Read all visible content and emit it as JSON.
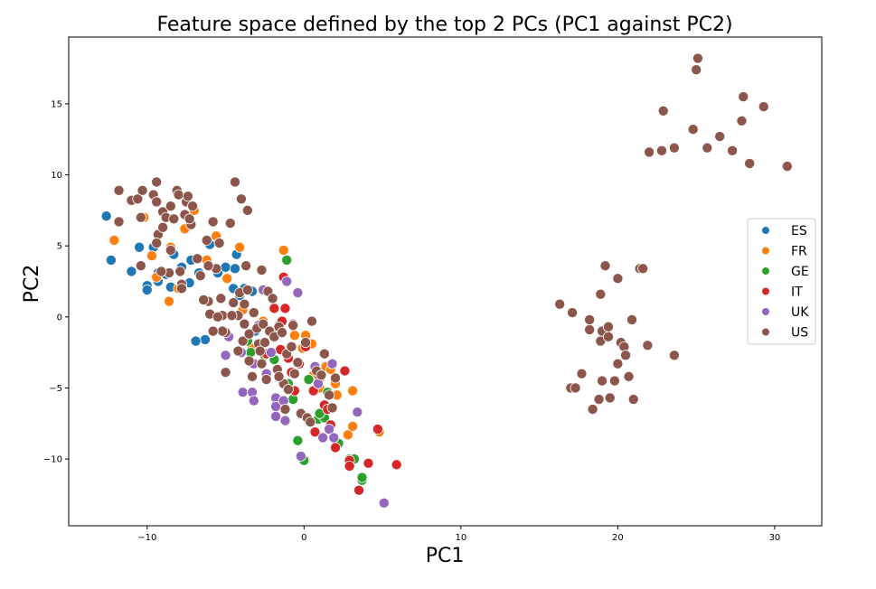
{
  "chart_data": {
    "type": "scatter",
    "title": "Feature space defined by the top 2 PCs (PC1 against PC2)",
    "xlabel": "PC1",
    "ylabel": "PC2",
    "xlim": [
      -15,
      33
    ],
    "ylim": [
      -14.7,
      19.7
    ],
    "xticks": [
      -10,
      0,
      10,
      20,
      30
    ],
    "yticks": [
      -10,
      -5,
      0,
      5,
      10,
      15
    ],
    "grid": false,
    "legend_position": "right",
    "series": [
      {
        "name": "ES",
        "color": "#1f77b4",
        "points": [
          [
            -12.6,
            7.1
          ],
          [
            -12.3,
            4.0
          ],
          [
            -11.0,
            3.2
          ],
          [
            -10.5,
            4.9
          ],
          [
            -10.0,
            2.2
          ],
          [
            -9.6,
            4.9
          ],
          [
            -10.0,
            1.9
          ],
          [
            -9.3,
            3.1
          ],
          [
            -9.3,
            2.5
          ],
          [
            -8.8,
            3.0
          ],
          [
            -8.5,
            2.1
          ],
          [
            -8.3,
            4.4
          ],
          [
            -7.8,
            3.5
          ],
          [
            -7.3,
            2.4
          ],
          [
            -7.2,
            4.0
          ],
          [
            -6.7,
            3.1
          ],
          [
            -6.3,
            -1.6
          ],
          [
            -6.9,
            -1.7
          ],
          [
            -6.0,
            5.1
          ],
          [
            -5.5,
            3.1
          ],
          [
            -5.0,
            3.5
          ],
          [
            -4.3,
            4.4
          ],
          [
            -4.4,
            3.4
          ],
          [
            -4.5,
            2.0
          ],
          [
            -4.1,
            1.5
          ],
          [
            -3.8,
            2.0
          ],
          [
            -3.1,
            -1.0
          ],
          [
            -3.3,
            1.8
          ]
        ]
      },
      {
        "name": "FR",
        "color": "#ff7f0e",
        "points": [
          [
            -12.1,
            5.4
          ],
          [
            -10.2,
            7.0
          ],
          [
            -9.7,
            4.3
          ],
          [
            -9.4,
            2.8
          ],
          [
            -8.6,
            1.1
          ],
          [
            -8.5,
            4.9
          ],
          [
            -8.0,
            2.0
          ],
          [
            -7.6,
            6.2
          ],
          [
            -7.0,
            7.5
          ],
          [
            -6.2,
            4.0
          ],
          [
            -5.6,
            5.7
          ],
          [
            -4.9,
            2.7
          ],
          [
            -4.1,
            4.9
          ],
          [
            -3.9,
            0.5
          ],
          [
            -3.3,
            -2.2
          ],
          [
            -2.6,
            -0.3
          ],
          [
            -1.7,
            -0.8
          ],
          [
            -1.3,
            4.7
          ],
          [
            -0.6,
            -1.3
          ],
          [
            -0.1,
            -2.2
          ],
          [
            0.1,
            -1.3
          ],
          [
            0.5,
            -1.9
          ],
          [
            0.6,
            -4.1
          ],
          [
            1.0,
            -5.0
          ],
          [
            1.4,
            -3.5
          ],
          [
            1.7,
            -3.7
          ],
          [
            2.0,
            -4.7
          ],
          [
            2.1,
            -5.5
          ],
          [
            2.8,
            -8.3
          ],
          [
            3.1,
            -5.2
          ],
          [
            3.1,
            -7.7
          ],
          [
            4.8,
            -8.1
          ]
        ]
      },
      {
        "name": "GE",
        "color": "#2ca02c",
        "points": [
          [
            -3.6,
            -1.7
          ],
          [
            -3.4,
            -2.5
          ],
          [
            -2.5,
            -2.7
          ],
          [
            -1.9,
            -3.0
          ],
          [
            -1.6,
            -0.6
          ],
          [
            -1.1,
            4.0
          ],
          [
            -1.0,
            -4.7
          ],
          [
            -0.7,
            -5.8
          ],
          [
            -0.4,
            -8.7
          ],
          [
            0.0,
            -10.1
          ],
          [
            0.3,
            -4.4
          ],
          [
            0.9,
            -7.2
          ],
          [
            1.3,
            -7.1
          ],
          [
            1.5,
            -5.3
          ],
          [
            2.2,
            -8.9
          ],
          [
            2.9,
            -10.0
          ],
          [
            3.2,
            -10.0
          ],
          [
            3.7,
            -11.5
          ],
          [
            3.7,
            -11.3
          ],
          [
            1.0,
            -6.8
          ]
        ]
      },
      {
        "name": "IT",
        "color": "#d62728",
        "points": [
          [
            -1.9,
            0.6
          ],
          [
            -1.4,
            -0.3
          ],
          [
            -1.3,
            2.8
          ],
          [
            -1.2,
            0.6
          ],
          [
            -1.0,
            -2.9
          ],
          [
            -0.8,
            -3.9
          ],
          [
            -0.6,
            -5.2
          ],
          [
            -0.3,
            -3.3
          ],
          [
            0.1,
            -2.1
          ],
          [
            0.6,
            -5.2
          ],
          [
            0.7,
            -8.1
          ],
          [
            1.0,
            -4.3
          ],
          [
            1.3,
            -6.2
          ],
          [
            1.5,
            -6.5
          ],
          [
            1.7,
            -7.6
          ],
          [
            2.0,
            -9.2
          ],
          [
            2.6,
            -3.8
          ],
          [
            2.9,
            -10.1
          ],
          [
            2.9,
            -10.5
          ],
          [
            3.5,
            -12.2
          ],
          [
            4.1,
            -10.3
          ],
          [
            4.7,
            -7.9
          ],
          [
            5.9,
            -10.4
          ],
          [
            -2.4,
            -2.6
          ],
          [
            -1.5,
            -2.3
          ]
        ]
      },
      {
        "name": "UK",
        "color": "#9467bd",
        "points": [
          [
            -5.0,
            -2.7
          ],
          [
            -4.8,
            -1.4
          ],
          [
            -4.0,
            -2.5
          ],
          [
            -3.9,
            -5.3
          ],
          [
            -3.3,
            -5.3
          ],
          [
            -3.2,
            -3.3
          ],
          [
            -3.2,
            -5.9
          ],
          [
            -2.9,
            -0.6
          ],
          [
            -2.6,
            1.9
          ],
          [
            -2.1,
            -2.5
          ],
          [
            -1.8,
            -5.7
          ],
          [
            -1.8,
            -6.3
          ],
          [
            -1.8,
            -7.0
          ],
          [
            -1.3,
            -5.9
          ],
          [
            -1.2,
            -7.3
          ],
          [
            -1.1,
            2.5
          ],
          [
            -0.7,
            -0.5
          ],
          [
            -0.4,
            1.7
          ],
          [
            -0.2,
            -9.8
          ],
          [
            0.7,
            -3.5
          ],
          [
            0.9,
            -4.7
          ],
          [
            1.2,
            -8.5
          ],
          [
            1.6,
            -7.9
          ],
          [
            1.9,
            -8.5
          ],
          [
            3.4,
            -6.7
          ],
          [
            5.1,
            -13.1
          ],
          [
            1.8,
            -3.3
          ],
          [
            -2.4,
            -4.0
          ]
        ]
      },
      {
        "name": "US",
        "color": "#8c564b",
        "points": [
          [
            -11.8,
            8.9
          ],
          [
            -11.8,
            6.7
          ],
          [
            -11.0,
            8.2
          ],
          [
            -10.6,
            8.3
          ],
          [
            -10.3,
            8.9
          ],
          [
            -10.4,
            7.0
          ],
          [
            -10.4,
            3.6
          ],
          [
            -9.6,
            8.6
          ],
          [
            -9.4,
            9.5
          ],
          [
            -9.4,
            8.1
          ],
          [
            -9.3,
            5.8
          ],
          [
            -9.4,
            5.2
          ],
          [
            -9.0,
            7.4
          ],
          [
            -9.0,
            6.3
          ],
          [
            -8.8,
            7.0
          ],
          [
            -8.6,
            3.1
          ],
          [
            -8.5,
            7.8
          ],
          [
            -8.5,
            4.7
          ],
          [
            -8.3,
            6.9
          ],
          [
            -8.1,
            8.9
          ],
          [
            -8.0,
            8.6
          ],
          [
            -7.9,
            3.2
          ],
          [
            -7.8,
            2.3
          ],
          [
            -7.6,
            7.2
          ],
          [
            -7.5,
            8.1
          ],
          [
            -7.4,
            8.5
          ],
          [
            -7.2,
            6.5
          ],
          [
            -7.1,
            7.8
          ],
          [
            -6.8,
            4.1
          ],
          [
            -6.6,
            2.9
          ],
          [
            -6.2,
            5.4
          ],
          [
            -6.1,
            1.1
          ],
          [
            -6.0,
            0.2
          ],
          [
            -5.8,
            6.7
          ],
          [
            -5.6,
            3.4
          ],
          [
            -5.4,
            5.2
          ],
          [
            -5.3,
            1.3
          ],
          [
            -5.2,
            0.1
          ],
          [
            -5.0,
            -1.1
          ],
          [
            -5.0,
            -3.9
          ],
          [
            -4.7,
            6.6
          ],
          [
            -4.4,
            9.5
          ],
          [
            -4.2,
            0.1
          ],
          [
            -4.1,
            1.7
          ],
          [
            -4.0,
            8.3
          ],
          [
            -3.9,
            -1.7
          ],
          [
            -3.8,
            0.9
          ],
          [
            -3.8,
            -0.5
          ],
          [
            -3.7,
            3.6
          ],
          [
            -3.6,
            7.5
          ],
          [
            -3.6,
            1.9
          ],
          [
            -3.5,
            -1.2
          ],
          [
            -3.3,
            -4.2
          ],
          [
            -3.2,
            0.3
          ],
          [
            -3.0,
            -0.8
          ],
          [
            -2.9,
            -1.9
          ],
          [
            -2.7,
            3.3
          ],
          [
            -2.7,
            -3.3
          ],
          [
            -2.6,
            -0.5
          ],
          [
            -2.5,
            -1.8
          ],
          [
            -2.3,
            1.8
          ],
          [
            -2.2,
            -1.0
          ],
          [
            -2.0,
            1.3
          ],
          [
            -1.9,
            -1.4
          ],
          [
            -1.7,
            -3.7
          ],
          [
            -1.6,
            -0.7
          ],
          [
            -1.4,
            -1.1
          ],
          [
            -1.3,
            -4.7
          ],
          [
            -1.2,
            -6.5
          ],
          [
            -1.1,
            -2.6
          ],
          [
            -1.0,
            -5.1
          ],
          [
            -0.8,
            -2.1
          ],
          [
            -0.7,
            -0.6
          ],
          [
            -0.6,
            -4.0
          ],
          [
            -0.4,
            -3.2
          ],
          [
            -0.2,
            -6.8
          ],
          [
            0.1,
            -1.8
          ],
          [
            0.2,
            -7.1
          ],
          [
            0.4,
            -7.4
          ],
          [
            0.5,
            -0.3
          ],
          [
            0.8,
            -3.8
          ],
          [
            1.1,
            -4.1
          ],
          [
            1.3,
            -2.6
          ],
          [
            1.6,
            -5.5
          ],
          [
            1.8,
            -6.4
          ],
          [
            2.0,
            -4.3
          ],
          [
            -5.2,
            -1.0
          ],
          [
            -5.8,
            -1.0
          ],
          [
            -6.1,
            3.6
          ],
          [
            -7.3,
            6.9
          ],
          [
            -9.1,
            3.2
          ],
          [
            -7.8,
            2.0
          ],
          [
            -6.4,
            1.2
          ],
          [
            -4.6,
            0.1
          ],
          [
            -4.5,
            1.0
          ],
          [
            -4.2,
            -2.4
          ],
          [
            -3.5,
            -3.1
          ],
          [
            -2.8,
            -2.4
          ],
          [
            -2.4,
            -4.4
          ],
          [
            -1.6,
            -4.2
          ],
          [
            -5.5,
            0.0
          ],
          [
            16.3,
            0.9
          ],
          [
            17.0,
            -5.0
          ],
          [
            17.1,
            0.3
          ],
          [
            17.3,
            -5.0
          ],
          [
            17.7,
            -4.0
          ],
          [
            18.2,
            -0.2
          ],
          [
            18.2,
            -0.9
          ],
          [
            18.4,
            -6.5
          ],
          [
            18.8,
            -5.8
          ],
          [
            18.9,
            -1.7
          ],
          [
            18.9,
            1.6
          ],
          [
            19.0,
            -1.0
          ],
          [
            19.0,
            -4.5
          ],
          [
            19.2,
            3.6
          ],
          [
            19.4,
            -0.7
          ],
          [
            19.4,
            -1.4
          ],
          [
            19.5,
            -5.7
          ],
          [
            19.8,
            -4.5
          ],
          [
            20.0,
            2.7
          ],
          [
            20.0,
            -3.3
          ],
          [
            20.2,
            -1.8
          ],
          [
            20.4,
            -2.1
          ],
          [
            20.5,
            -2.7
          ],
          [
            20.7,
            -4.2
          ],
          [
            20.9,
            -0.2
          ],
          [
            21.0,
            -5.8
          ],
          [
            21.4,
            3.4
          ],
          [
            21.6,
            3.4
          ],
          [
            21.9,
            -2.0
          ],
          [
            23.6,
            -2.7
          ],
          [
            22.0,
            11.6
          ],
          [
            22.8,
            11.7
          ],
          [
            22.9,
            14.5
          ],
          [
            23.6,
            11.9
          ],
          [
            24.8,
            13.2
          ],
          [
            25.0,
            17.4
          ],
          [
            25.1,
            18.2
          ],
          [
            25.7,
            11.9
          ],
          [
            26.5,
            12.7
          ],
          [
            27.3,
            11.7
          ],
          [
            27.9,
            13.8
          ],
          [
            28.0,
            15.5
          ],
          [
            28.4,
            10.8
          ],
          [
            29.3,
            14.8
          ],
          [
            30.8,
            10.6
          ]
        ]
      }
    ]
  }
}
